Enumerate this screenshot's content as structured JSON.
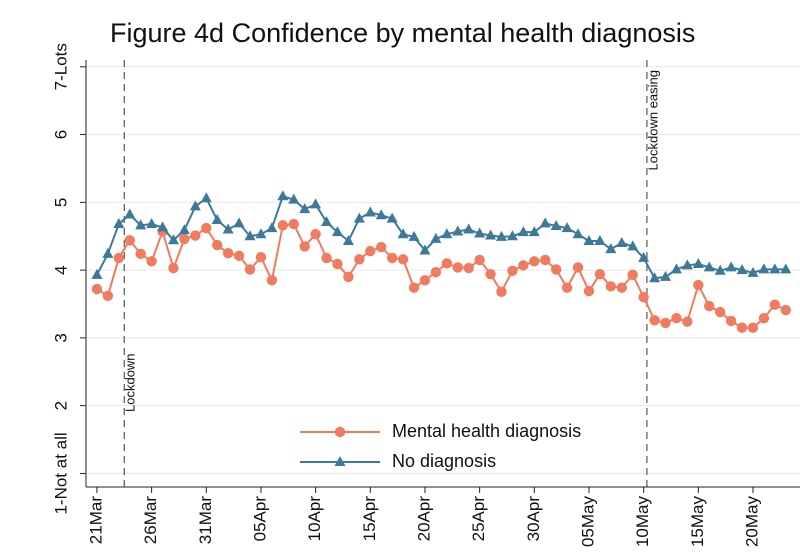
{
  "chart_data": {
    "type": "line",
    "title": "Figure 4d Confidence by mental health diagnosis",
    "x": [
      0,
      1,
      2,
      3,
      4,
      5,
      6,
      7,
      8,
      9,
      10,
      11,
      12,
      13,
      14,
      15,
      16,
      17,
      18,
      19,
      20,
      21,
      22,
      23,
      24,
      25,
      26,
      27,
      28,
      29,
      30,
      31,
      32,
      33,
      34,
      35,
      36,
      37,
      38,
      39,
      40,
      41,
      42,
      43,
      44,
      45,
      46,
      47,
      48,
      49,
      50,
      51,
      52,
      53,
      54,
      55,
      56,
      57,
      58,
      59,
      60,
      61,
      62,
      63
    ],
    "series": [
      {
        "name": "Mental health diagnosis",
        "color": "#f07b5e",
        "marker": "circle",
        "values": [
          3.72,
          3.62,
          4.18,
          4.44,
          4.24,
          4.13,
          4.57,
          4.03,
          4.46,
          4.51,
          4.62,
          4.37,
          4.25,
          4.21,
          4.01,
          4.19,
          3.85,
          4.66,
          4.68,
          4.35,
          4.53,
          4.18,
          4.09,
          3.9,
          4.16,
          4.28,
          4.34,
          4.18,
          4.16,
          3.74,
          3.85,
          3.97,
          4.1,
          4.04,
          4.03,
          4.15,
          3.94,
          3.68,
          3.99,
          4.07,
          4.13,
          4.15,
          4.01,
          3.74,
          4.04,
          3.69,
          3.94,
          3.76,
          3.74,
          3.93,
          3.6,
          3.26,
          3.22,
          3.29,
          3.24,
          3.78,
          3.47,
          3.38,
          3.25,
          3.15,
          3.15,
          3.29,
          3.49,
          3.41
        ]
      },
      {
        "name": "No diagnosis",
        "color": "#3d7a99",
        "marker": "triangle",
        "values": [
          3.93,
          4.24,
          4.68,
          4.82,
          4.66,
          4.68,
          4.63,
          4.44,
          4.59,
          4.94,
          5.06,
          4.74,
          4.6,
          4.69,
          4.5,
          4.53,
          4.62,
          5.09,
          5.04,
          4.9,
          4.97,
          4.71,
          4.56,
          4.43,
          4.76,
          4.85,
          4.81,
          4.76,
          4.53,
          4.49,
          4.29,
          4.46,
          4.53,
          4.57,
          4.6,
          4.54,
          4.51,
          4.49,
          4.5,
          4.56,
          4.56,
          4.69,
          4.65,
          4.62,
          4.53,
          4.43,
          4.43,
          4.31,
          4.4,
          4.35,
          4.18,
          3.88,
          3.9,
          4.01,
          4.07,
          4.09,
          4.04,
          3.99,
          4.04,
          4.0,
          3.96,
          4.01,
          4.01,
          4.01
        ]
      }
    ],
    "xlim": [
      -1,
      64.3
    ],
    "ylim": [
      0.8,
      7.1
    ],
    "xticks": [
      {
        "value": 0,
        "label": "21Mar"
      },
      {
        "value": 5,
        "label": "26Mar"
      },
      {
        "value": 10,
        "label": "31Mar"
      },
      {
        "value": 15,
        "label": "05Apr"
      },
      {
        "value": 20,
        "label": "10Apr"
      },
      {
        "value": 25,
        "label": "15Apr"
      },
      {
        "value": 30,
        "label": "20Apr"
      },
      {
        "value": 35,
        "label": "25Apr"
      },
      {
        "value": 40,
        "label": "30Apr"
      },
      {
        "value": 45,
        "label": "05May"
      },
      {
        "value": 50,
        "label": "10May"
      },
      {
        "value": 55,
        "label": "15May"
      },
      {
        "value": 60,
        "label": "20May"
      }
    ],
    "yticks": [
      {
        "value": 1,
        "label": "1-Not at all"
      },
      2,
      3,
      4,
      5,
      6,
      {
        "value": 7,
        "label": "7-Lots"
      }
    ],
    "grid": true,
    "events": [
      {
        "x": 2.5,
        "label": "Lockdown"
      },
      {
        "x": 50.3,
        "label": "Lockdown easing"
      }
    ]
  }
}
